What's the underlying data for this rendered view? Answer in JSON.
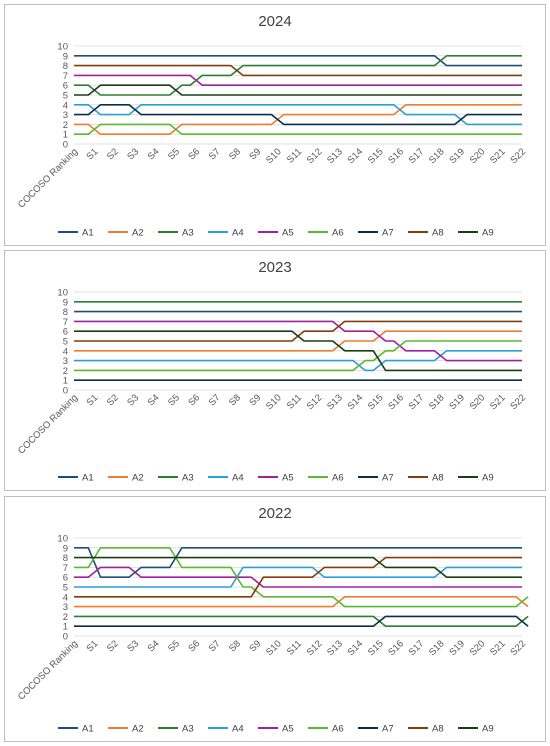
{
  "chart_data": [
    {
      "type": "line",
      "title": "2024",
      "categories": [
        "COCOSO Ranking",
        "S1",
        "S2",
        "S3",
        "S4",
        "S5",
        "S6",
        "S7",
        "S8",
        "S9",
        "S10",
        "S11",
        "S12",
        "S13",
        "S14",
        "S15",
        "S16",
        "S17",
        "S18",
        "S19",
        "S20",
        "S21",
        "S22"
      ],
      "ylim": [
        0,
        10
      ],
      "yticks": [
        0,
        1,
        2,
        3,
        4,
        5,
        6,
        7,
        8,
        9,
        10
      ],
      "grid": true,
      "legend": "bottom",
      "series": [
        {
          "name": "A1",
          "color": "#1f4e79",
          "values": [
            9,
            9,
            9,
            9,
            9,
            9,
            9,
            9,
            9,
            9,
            9,
            9,
            9,
            9,
            9,
            9,
            9,
            9,
            8,
            8,
            8,
            8,
            8
          ]
        },
        {
          "name": "A2",
          "color": "#ed7d31",
          "values": [
            2,
            1,
            1,
            1,
            1,
            2,
            2,
            2,
            2,
            2,
            3,
            3,
            3,
            3,
            3,
            3,
            4,
            4,
            4,
            4,
            4,
            4,
            4
          ]
        },
        {
          "name": "A3",
          "color": "#2e7d32",
          "values": [
            6,
            5,
            5,
            5,
            5,
            6,
            7,
            7,
            8,
            8,
            8,
            8,
            8,
            8,
            8,
            8,
            8,
            8,
            9,
            9,
            9,
            9,
            9
          ]
        },
        {
          "name": "A4",
          "color": "#2a9fd6",
          "values": [
            4,
            3,
            3,
            4,
            4,
            4,
            4,
            4,
            4,
            4,
            4,
            4,
            4,
            4,
            4,
            4,
            3,
            3,
            3,
            2,
            2,
            2,
            2
          ]
        },
        {
          "name": "A5",
          "color": "#a020a0",
          "values": [
            7,
            7,
            7,
            7,
            7,
            7,
            6,
            6,
            6,
            6,
            6,
            6,
            6,
            6,
            6,
            6,
            6,
            6,
            6,
            6,
            6,
            6,
            6
          ]
        },
        {
          "name": "A6",
          "color": "#5cb82e",
          "values": [
            1,
            2,
            2,
            2,
            2,
            1,
            1,
            1,
            1,
            1,
            1,
            1,
            1,
            1,
            1,
            1,
            1,
            1,
            1,
            1,
            1,
            1,
            1
          ]
        },
        {
          "name": "A7",
          "color": "#0c2d48",
          "values": [
            3,
            4,
            4,
            3,
            3,
            3,
            3,
            3,
            3,
            3,
            2,
            2,
            2,
            2,
            2,
            2,
            2,
            2,
            2,
            3,
            3,
            3,
            3
          ]
        },
        {
          "name": "A8",
          "color": "#843c0c",
          "values": [
            8,
            8,
            8,
            8,
            8,
            8,
            8,
            8,
            7,
            7,
            7,
            7,
            7,
            7,
            7,
            7,
            7,
            7,
            7,
            7,
            7,
            7,
            7
          ]
        },
        {
          "name": "A9",
          "color": "#1a3d14",
          "values": [
            5,
            6,
            6,
            6,
            6,
            5,
            5,
            5,
            5,
            5,
            5,
            5,
            5,
            5,
            5,
            5,
            5,
            5,
            5,
            5,
            5,
            5,
            5
          ]
        }
      ]
    },
    {
      "type": "line",
      "title": "2023",
      "categories": [
        "COCOSO Ranking",
        "S1",
        "S2",
        "S3",
        "S4",
        "S5",
        "S6",
        "S7",
        "S8",
        "S9",
        "S10",
        "S11",
        "S12",
        "S13",
        "S14",
        "S15",
        "S16",
        "S17",
        "S18",
        "S19",
        "S20",
        "S21",
        "S22"
      ],
      "ylim": [
        0,
        10
      ],
      "yticks": [
        0,
        1,
        2,
        3,
        4,
        5,
        6,
        7,
        8,
        9,
        10
      ],
      "grid": true,
      "legend": "bottom",
      "series": [
        {
          "name": "A1",
          "color": "#1f4e79",
          "values": [
            8,
            8,
            8,
            8,
            8,
            8,
            8,
            8,
            8,
            8,
            8,
            8,
            8,
            8,
            8,
            8,
            8,
            8,
            8,
            8,
            8,
            8,
            8
          ]
        },
        {
          "name": "A2",
          "color": "#ed7d31",
          "values": [
            4,
            4,
            4,
            4,
            4,
            4,
            4,
            4,
            4,
            4,
            4,
            4,
            4,
            5,
            5,
            6,
            6,
            6,
            6,
            6,
            6,
            6,
            6
          ]
        },
        {
          "name": "A3",
          "color": "#2e7d32",
          "values": [
            9,
            9,
            9,
            9,
            9,
            9,
            9,
            9,
            9,
            9,
            9,
            9,
            9,
            9,
            9,
            9,
            9,
            9,
            9,
            9,
            9,
            9,
            9
          ]
        },
        {
          "name": "A4",
          "color": "#2a9fd6",
          "values": [
            3,
            3,
            3,
            3,
            3,
            3,
            3,
            3,
            3,
            3,
            3,
            3,
            3,
            3,
            2,
            3,
            3,
            3,
            4,
            4,
            4,
            4,
            4
          ]
        },
        {
          "name": "A5",
          "color": "#a020a0",
          "values": [
            7,
            7,
            7,
            7,
            7,
            7,
            7,
            7,
            7,
            7,
            7,
            7,
            7,
            6,
            6,
            5,
            4,
            4,
            3,
            3,
            3,
            3,
            3
          ]
        },
        {
          "name": "A6",
          "color": "#5cb82e",
          "values": [
            2,
            2,
            2,
            2,
            2,
            2,
            2,
            2,
            2,
            2,
            2,
            2,
            2,
            2,
            3,
            4,
            5,
            5,
            5,
            5,
            5,
            5,
            5
          ]
        },
        {
          "name": "A7",
          "color": "#0c2d48",
          "values": [
            1,
            1,
            1,
            1,
            1,
            1,
            1,
            1,
            1,
            1,
            1,
            1,
            1,
            1,
            1,
            1,
            1,
            1,
            1,
            1,
            1,
            1,
            1
          ]
        },
        {
          "name": "A8",
          "color": "#843c0c",
          "values": [
            5,
            5,
            5,
            5,
            5,
            5,
            5,
            5,
            5,
            5,
            5,
            6,
            6,
            7,
            7,
            7,
            7,
            7,
            7,
            7,
            7,
            7,
            7
          ]
        },
        {
          "name": "A9",
          "color": "#1a3d14",
          "values": [
            6,
            6,
            6,
            6,
            6,
            6,
            6,
            6,
            6,
            6,
            6,
            5,
            5,
            4,
            4,
            2,
            2,
            2,
            2,
            2,
            2,
            2,
            2
          ]
        }
      ]
    },
    {
      "type": "line",
      "title": "2022",
      "categories": [
        "COCOSO Ranking",
        "S1",
        "S2",
        "S3",
        "S4",
        "S5",
        "S6",
        "S7",
        "S8",
        "S9",
        "S10",
        "S11",
        "S12",
        "S13",
        "S14",
        "S15",
        "S16",
        "S17",
        "S18",
        "S19",
        "S20",
        "S21",
        "S22"
      ],
      "ylim": [
        0,
        10
      ],
      "yticks": [
        0,
        1,
        2,
        3,
        4,
        5,
        6,
        7,
        8,
        9,
        10
      ],
      "grid": true,
      "legend": "bottom",
      "series": [
        {
          "name": "A1",
          "color": "#1f4e79",
          "values": [
            9,
            6,
            6,
            7,
            7,
            9,
            9,
            9,
            9,
            9,
            9,
            9,
            9,
            9,
            9,
            9,
            9,
            9,
            9,
            9,
            9,
            9,
            9
          ]
        },
        {
          "name": "A2",
          "color": "#ed7d31",
          "values": [
            3,
            3,
            3,
            3,
            3,
            3,
            3,
            3,
            3,
            3,
            3,
            3,
            3,
            4,
            4,
            4,
            4,
            4,
            4,
            4,
            4,
            4,
            3
          ]
        },
        {
          "name": "A3",
          "color": "#2e7d32",
          "values": [
            2,
            2,
            2,
            2,
            2,
            2,
            2,
            2,
            2,
            2,
            2,
            2,
            2,
            2,
            2,
            1,
            1,
            1,
            1,
            1,
            1,
            1,
            2
          ]
        },
        {
          "name": "A4",
          "color": "#2a9fd6",
          "values": [
            5,
            5,
            5,
            5,
            5,
            5,
            5,
            5,
            7,
            7,
            7,
            7,
            6,
            6,
            6,
            6,
            6,
            6,
            7,
            7,
            7,
            7,
            7
          ]
        },
        {
          "name": "A5",
          "color": "#a020a0",
          "values": [
            6,
            7,
            7,
            6,
            6,
            6,
            6,
            6,
            6,
            5,
            5,
            5,
            5,
            5,
            5,
            5,
            5,
            5,
            5,
            5,
            5,
            5,
            5
          ]
        },
        {
          "name": "A6",
          "color": "#5cb82e",
          "values": [
            7,
            9,
            9,
            9,
            9,
            7,
            7,
            7,
            5,
            4,
            4,
            4,
            4,
            3,
            3,
            3,
            3,
            3,
            3,
            3,
            3,
            3,
            4
          ]
        },
        {
          "name": "A7",
          "color": "#0c2d48",
          "values": [
            1,
            1,
            1,
            1,
            1,
            1,
            1,
            1,
            1,
            1,
            1,
            1,
            1,
            1,
            1,
            2,
            2,
            2,
            2,
            2,
            2,
            2,
            1
          ]
        },
        {
          "name": "A8",
          "color": "#843c0c",
          "values": [
            4,
            4,
            4,
            4,
            4,
            4,
            4,
            4,
            4,
            6,
            6,
            6,
            7,
            7,
            7,
            8,
            8,
            8,
            8,
            8,
            8,
            8,
            8
          ]
        },
        {
          "name": "A9",
          "color": "#1a3d14",
          "values": [
            8,
            8,
            8,
            8,
            8,
            8,
            8,
            8,
            8,
            8,
            8,
            8,
            8,
            8,
            8,
            7,
            7,
            7,
            6,
            6,
            6,
            6,
            6
          ]
        }
      ]
    }
  ]
}
